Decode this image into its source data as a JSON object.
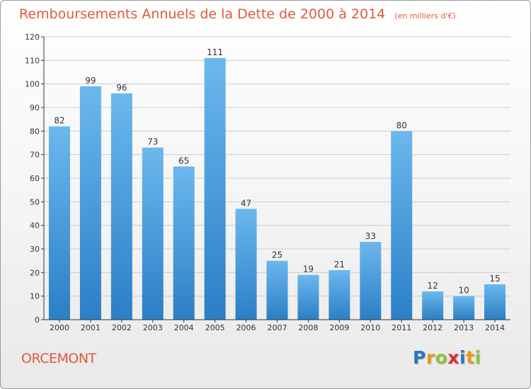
{
  "header": {
    "title": "Remboursements Annuels de la Dette de 2000 à 2014",
    "subtitle": "(en milliers d'€)"
  },
  "footer": {
    "commune": "ORCEMONT",
    "logo_text": "Proxiti"
  },
  "colors": {
    "title": "#e0593c",
    "bar_top": "#6cb8ee",
    "bar_bottom": "#2a7fc6",
    "grid": "#cccccc",
    "axis": "#333333",
    "logo_letters": [
      "#2e73c0",
      "#f0941d",
      "#8ac43f",
      "#d92c2c",
      "#2e73c0",
      "#f0941d",
      "#8ac43f"
    ]
  },
  "chart_data": {
    "type": "bar",
    "title": "Remboursements Annuels de la Dette de 2000 à 2014",
    "subtitle": "(en milliers d'€)",
    "categories": [
      "2000",
      "2001",
      "2002",
      "2003",
      "2004",
      "2005",
      "2006",
      "2007",
      "2008",
      "2009",
      "2010",
      "2011",
      "2012",
      "2013",
      "2014"
    ],
    "values": [
      82,
      99,
      96,
      73,
      65,
      111,
      47,
      25,
      19,
      21,
      33,
      80,
      12,
      10,
      15
    ],
    "ylim": [
      0,
      120
    ],
    "yticks": [
      0,
      10,
      20,
      30,
      40,
      50,
      60,
      70,
      80,
      90,
      100,
      110,
      120
    ],
    "grid": true,
    "data_labels": true
  }
}
